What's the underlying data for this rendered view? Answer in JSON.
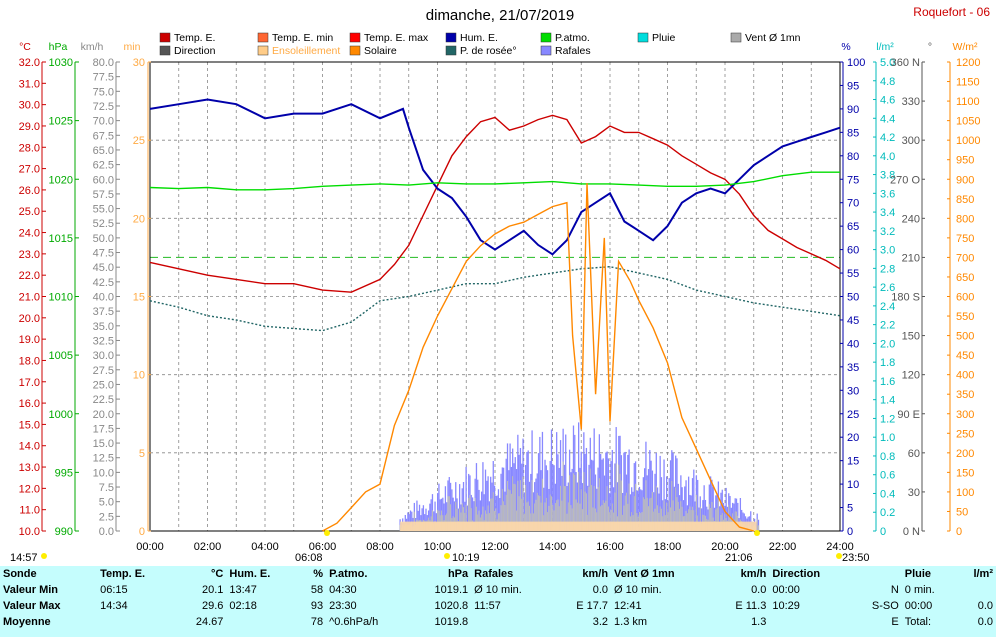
{
  "title": "dimanche, 21/07/2019",
  "station": "Roquefort - 06",
  "legend": [
    {
      "label": "Temp. E.",
      "color": "#cc0000"
    },
    {
      "label": "Temp. E. min",
      "color": "#ff6633"
    },
    {
      "label": "Temp. E. max",
      "color": "#ff0000"
    },
    {
      "label": "Hum. E.",
      "color": "#0000aa"
    },
    {
      "label": "P.atmo.",
      "color": "#00dd00"
    },
    {
      "label": "Pluie",
      "color": "#00dddd"
    },
    {
      "label": "Vent Ø 1mn",
      "color": "#aaaaaa"
    },
    {
      "label": "Direction",
      "color": "#555555"
    },
    {
      "label": "Ensoleillement",
      "color": "#ffcc88"
    },
    {
      "label": "Solaire",
      "color": "#ff8800"
    },
    {
      "label": "P. de rosée°",
      "color": "#226666"
    },
    {
      "label": "Rafales",
      "color": "#8888ff"
    }
  ],
  "axis_units": {
    "temp": "°C",
    "pressure": "hPa",
    "wind": "km/h",
    "sun": "min",
    "hum": "%",
    "rain": "l/m²",
    "dir": "°",
    "solar": "W/m²"
  },
  "time_markers": {
    "start": "14:57",
    "sunrise": "06:08",
    "t1019": "10:19",
    "sunset": "21:06",
    "end": "23:50"
  },
  "chart_data": {
    "type": "line",
    "title": "dimanche, 21/07/2019",
    "x_labels": [
      "00:00",
      "02:00",
      "04:00",
      "06:00",
      "08:00",
      "10:00",
      "12:00",
      "14:00",
      "16:00",
      "18:00",
      "20:00",
      "22:00",
      "24:00"
    ],
    "axes": {
      "temp_c": {
        "range": [
          10.0,
          32.0
        ],
        "step": 1.0,
        "color": "#cc0000"
      },
      "pressure_hpa": {
        "range": [
          990,
          1030
        ],
        "step": 5,
        "color": "#00aa00"
      },
      "wind_kmh": {
        "range": [
          0.0,
          80.0
        ],
        "step": 2.5,
        "color": "#888888"
      },
      "sun_min": {
        "range": [
          0,
          30
        ],
        "step": 5,
        "color": "#ffaa44"
      },
      "hum_pct": {
        "range": [
          0,
          100
        ],
        "step": 5,
        "color": "#0000aa"
      },
      "rain_lm2": {
        "range": [
          0,
          5.0
        ],
        "step": 0.2,
        "color": "#00bbbb"
      },
      "dir_deg": {
        "range": [
          0,
          360
        ],
        "step": 30,
        "labels": {
          "0": "N",
          "90": "E",
          "180": "S",
          "270": "O",
          "360": "N"
        },
        "color": "#555555"
      },
      "solar_wm2": {
        "range": [
          0,
          1200
        ],
        "step": 50,
        "color": "#ff8800"
      }
    },
    "series": [
      {
        "name": "Temp. E.",
        "axis": "temp_c",
        "color": "#cc0000",
        "points": [
          [
            0,
            22.6
          ],
          [
            1,
            22.3
          ],
          [
            2,
            22.0
          ],
          [
            3,
            21.8
          ],
          [
            4,
            21.6
          ],
          [
            5,
            21.6
          ],
          [
            6,
            21.3
          ],
          [
            7,
            21.2
          ],
          [
            8,
            21.8
          ],
          [
            8.5,
            22.5
          ],
          [
            9,
            23.4
          ],
          [
            9.5,
            24.8
          ],
          [
            10,
            26.2
          ],
          [
            10.5,
            27.6
          ],
          [
            11,
            28.5
          ],
          [
            11.5,
            29.2
          ],
          [
            12,
            29.4
          ],
          [
            12.5,
            28.8
          ],
          [
            13,
            29.0
          ],
          [
            13.5,
            29.3
          ],
          [
            14,
            29.5
          ],
          [
            14.5,
            29.3
          ],
          [
            15,
            28.2
          ],
          [
            15.5,
            28.5
          ],
          [
            16,
            29.0
          ],
          [
            16.5,
            28.7
          ],
          [
            17,
            28.7
          ],
          [
            17.5,
            28.4
          ],
          [
            18,
            28.1
          ],
          [
            18.5,
            27.6
          ],
          [
            19,
            27.2
          ],
          [
            19.5,
            26.8
          ],
          [
            20,
            26.5
          ],
          [
            20.5,
            25.8
          ],
          [
            21,
            24.8
          ],
          [
            21.5,
            24.1
          ],
          [
            22,
            23.7
          ],
          [
            22.5,
            23.3
          ],
          [
            23,
            23.0
          ],
          [
            23.5,
            22.7
          ],
          [
            24,
            22.3
          ]
        ]
      },
      {
        "name": "Hum. E.",
        "axis": "hum_pct",
        "color": "#0000aa",
        "points": [
          [
            0,
            90
          ],
          [
            1,
            91
          ],
          [
            2,
            92
          ],
          [
            3,
            91
          ],
          [
            4,
            88
          ],
          [
            5,
            89
          ],
          [
            6,
            89
          ],
          [
            7,
            91
          ],
          [
            8,
            88
          ],
          [
            8.8,
            90
          ],
          [
            9,
            86
          ],
          [
            9.5,
            77
          ],
          [
            10,
            73
          ],
          [
            10.5,
            71
          ],
          [
            11,
            67
          ],
          [
            11.5,
            62
          ],
          [
            12,
            60
          ],
          [
            12.5,
            62
          ],
          [
            13,
            64
          ],
          [
            13.5,
            61
          ],
          [
            14,
            59
          ],
          [
            14.5,
            62
          ],
          [
            15,
            68
          ],
          [
            15.5,
            70
          ],
          [
            16,
            72
          ],
          [
            16.5,
            66
          ],
          [
            17,
            64
          ],
          [
            17.5,
            62
          ],
          [
            18,
            65
          ],
          [
            18.5,
            70
          ],
          [
            19,
            72
          ],
          [
            19.5,
            73
          ],
          [
            20,
            72
          ],
          [
            20.5,
            75
          ],
          [
            21,
            78
          ],
          [
            21.5,
            80
          ],
          [
            22,
            82
          ],
          [
            22.5,
            83
          ],
          [
            23,
            84
          ],
          [
            23.5,
            85
          ],
          [
            24,
            86
          ]
        ]
      },
      {
        "name": "P.atmo.",
        "axis": "pressure_hpa",
        "color": "#00dd00",
        "points": [
          [
            0,
            1019.3
          ],
          [
            1,
            1019.2
          ],
          [
            2,
            1019.3
          ],
          [
            3,
            1019.1
          ],
          [
            4,
            1019.1
          ],
          [
            5,
            1019.2
          ],
          [
            6,
            1019.4
          ],
          [
            7,
            1019.5
          ],
          [
            8,
            1019.6
          ],
          [
            9,
            1019.5
          ],
          [
            10,
            1019.7
          ],
          [
            11,
            1019.6
          ],
          [
            12,
            1019.6
          ],
          [
            13,
            1019.7
          ],
          [
            14,
            1019.8
          ],
          [
            15,
            1019.6
          ],
          [
            16,
            1019.6
          ],
          [
            17,
            1019.5
          ],
          [
            18,
            1019.4
          ],
          [
            19,
            1019.4
          ],
          [
            20,
            1019.5
          ],
          [
            21,
            1019.8
          ],
          [
            22,
            1020.3
          ],
          [
            23,
            1020.6
          ],
          [
            24,
            1020.6
          ]
        ]
      },
      {
        "name": "P. de rosée°",
        "axis": "temp_c",
        "color": "#226666",
        "dashed": true,
        "points": [
          [
            0,
            20.8
          ],
          [
            1,
            20.5
          ],
          [
            2,
            20.1
          ],
          [
            3,
            19.9
          ],
          [
            4,
            19.6
          ],
          [
            5,
            19.5
          ],
          [
            6,
            19.4
          ],
          [
            7,
            19.8
          ],
          [
            8,
            20.8
          ],
          [
            9,
            21.0
          ],
          [
            10,
            21.3
          ],
          [
            11,
            21.6
          ],
          [
            12,
            21.6
          ],
          [
            13,
            21.9
          ],
          [
            14,
            22.1
          ],
          [
            15,
            22.3
          ],
          [
            16,
            22.4
          ],
          [
            17,
            22.1
          ],
          [
            18,
            21.8
          ],
          [
            19,
            21.3
          ],
          [
            20,
            21.0
          ],
          [
            21,
            20.7
          ],
          [
            22,
            20.5
          ],
          [
            23,
            20.3
          ],
          [
            24,
            20.1
          ]
        ]
      },
      {
        "name": "Solaire",
        "axis": "solar_wm2",
        "color": "#ff8800",
        "points": [
          [
            6,
            0
          ],
          [
            6.5,
            20
          ],
          [
            7,
            60
          ],
          [
            7.5,
            100
          ],
          [
            8,
            120
          ],
          [
            8.5,
            270
          ],
          [
            9,
            360
          ],
          [
            9.5,
            470
          ],
          [
            10,
            550
          ],
          [
            10.5,
            620
          ],
          [
            11,
            690
          ],
          [
            11.5,
            730
          ],
          [
            12,
            760
          ],
          [
            12.5,
            780
          ],
          [
            13,
            790
          ],
          [
            13.5,
            810
          ],
          [
            14,
            830
          ],
          [
            14.5,
            840
          ],
          [
            14.7,
            500
          ],
          [
            15,
            260
          ],
          [
            15.2,
            890
          ],
          [
            15.5,
            350
          ],
          [
            15.8,
            750
          ],
          [
            16,
            280
          ],
          [
            16.3,
            690
          ],
          [
            16.7,
            640
          ],
          [
            17,
            590
          ],
          [
            17.5,
            520
          ],
          [
            18,
            430
          ],
          [
            18.5,
            290
          ],
          [
            19,
            210
          ],
          [
            19.5,
            130
          ],
          [
            20,
            50
          ],
          [
            20.5,
            10
          ],
          [
            21,
            0
          ]
        ]
      }
    ],
    "vertical_ticks": {
      "hum_pct_step": 5,
      "temp_step": 1
    }
  },
  "stats": {
    "headers": [
      "Sonde",
      "Temp. E.",
      "°C",
      "Hum. E.",
      "%",
      "P.atmo.",
      "hPa",
      "Rafales",
      "km/h",
      "Vent Ø 1mn",
      "km/h",
      "Direction",
      "",
      "Pluie",
      "l/m²"
    ],
    "rows": [
      [
        "Valeur Min",
        "06:15",
        "20.1",
        "13:47",
        "58",
        "04:30",
        "1019.1",
        "Ø 10 min.",
        "0.0",
        "Ø 10 min.",
        "0.0",
        "00:00",
        "N",
        "0 min.",
        ""
      ],
      [
        "Valeur Max",
        "14:34",
        "29.6",
        "02:18",
        "93",
        "23:30",
        "1020.8",
        "11:57",
        "E 17.7",
        "12:41",
        "E 11.3",
        "10:29",
        "S-SO",
        "00:00",
        "0.0"
      ],
      [
        "Moyenne",
        "",
        "24.67",
        "",
        "78",
        "^0.6hPa/h",
        "1019.8",
        "",
        "3.2",
        "1.3 km",
        "1.3",
        "",
        "E",
        "Total:",
        "0.0"
      ]
    ]
  }
}
